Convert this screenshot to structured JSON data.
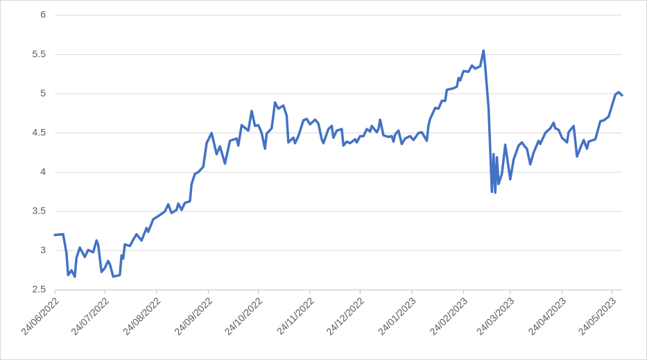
{
  "chart_data": {
    "type": "line",
    "x": [
      "24/06/2022",
      "29/06/2022",
      "01/07/2022",
      "02/07/2022",
      "04/07/2022",
      "06/07/2022",
      "07/07/2022",
      "09/07/2022",
      "12/07/2022",
      "14/07/2022",
      "17/07/2022",
      "19/07/2022",
      "20/07/2022",
      "22/07/2022",
      "24/07/2022",
      "26/07/2022",
      "27/07/2022",
      "29/07/2022",
      "02/08/2022",
      "03/08/2022",
      "04/08/2022",
      "05/08/2022",
      "08/08/2022",
      "10/08/2022",
      "12/08/2022",
      "15/08/2022",
      "18/08/2022",
      "19/08/2022",
      "22/08/2022",
      "25/08/2022",
      "29/08/2022",
      "31/08/2022",
      "02/09/2022",
      "05/09/2022",
      "06/09/2022",
      "08/09/2022",
      "10/09/2022",
      "13/09/2022",
      "14/09/2022",
      "16/09/2022",
      "18/09/2022",
      "21/09/2022",
      "23/09/2022",
      "26/09/2022",
      "29/09/2022",
      "01/10/2022",
      "04/10/2022",
      "07/10/2022",
      "11/10/2022",
      "12/10/2022",
      "14/10/2022",
      "18/10/2022",
      "20/10/2022",
      "22/10/2022",
      "24/10/2022",
      "26/10/2022",
      "28/10/2022",
      "29/10/2022",
      "01/11/2022",
      "03/11/2022",
      "05/11/2022",
      "08/11/2022",
      "10/11/2022",
      "11/11/2022",
      "14/11/2022",
      "15/11/2022",
      "17/11/2022",
      "20/11/2022",
      "22/11/2022",
      "24/11/2022",
      "27/11/2022",
      "29/11/2022",
      "01/12/2022",
      "02/12/2022",
      "05/12/2022",
      "07/12/2022",
      "08/12/2022",
      "10/12/2022",
      "13/12/2022",
      "14/12/2022",
      "16/12/2022",
      "18/12/2022",
      "21/12/2022",
      "22/12/2022",
      "24/12/2022",
      "26/12/2022",
      "28/12/2022",
      "30/12/2022",
      "31/12/2022",
      "03/01/2023",
      "04/01/2023",
      "05/01/2023",
      "07/01/2023",
      "10/01/2023",
      "12/01/2023",
      "13/01/2023",
      "14/01/2023",
      "16/01/2023",
      "18/01/2023",
      "20/01/2023",
      "23/01/2023",
      "25/01/2023",
      "28/01/2023",
      "30/01/2023",
      "02/02/2023",
      "03/02/2023",
      "04/02/2023",
      "07/02/2023",
      "09/02/2023",
      "11/02/2023",
      "13/02/2023",
      "14/02/2023",
      "18/02/2023",
      "20/02/2023",
      "21/02/2023",
      "22/02/2023",
      "24/02/2023",
      "27/02/2023",
      "01/03/2023",
      "03/03/2023",
      "06/03/2023",
      "08/03/2023",
      "09/03/2023",
      "11/03/2023",
      "13/03/2023",
      "14/03/2023",
      "15/03/2023",
      "16/03/2023",
      "17/03/2023",
      "19/03/2023",
      "21/03/2023",
      "24/03/2023",
      "26/03/2023",
      "29/03/2023",
      "31/03/2023",
      "02/04/2023",
      "03/04/2023",
      "05/04/2023",
      "07/04/2023",
      "10/04/2023",
      "11/04/2023",
      "14/04/2023",
      "17/04/2023",
      "19/04/2023",
      "20/04/2023",
      "22/04/2023",
      "24/04/2023",
      "27/04/2023",
      "28/04/2023",
      "01/05/2023",
      "03/05/2023",
      "05/05/2023",
      "07/05/2023",
      "09/05/2023",
      "10/05/2023",
      "14/05/2023",
      "17/05/2023",
      "19/05/2023",
      "22/05/2023",
      "26/05/2023",
      "28/05/2023",
      "30/05/2023"
    ],
    "series": [
      {
        "color": "#4472c4",
        "values": [
          3.2,
          3.21,
          2.97,
          2.69,
          2.75,
          2.67,
          2.91,
          3.04,
          2.92,
          3.01,
          2.98,
          3.13,
          3.08,
          2.73,
          2.78,
          2.87,
          2.83,
          2.67,
          2.69,
          2.94,
          2.9,
          3.08,
          3.06,
          3.14,
          3.21,
          3.13,
          3.29,
          3.24,
          3.4,
          3.44,
          3.5,
          3.59,
          3.48,
          3.52,
          3.6,
          3.52,
          3.61,
          3.63,
          3.85,
          3.98,
          4.0,
          4.07,
          4.37,
          4.5,
          4.23,
          4.33,
          4.11,
          4.4,
          4.43,
          4.34,
          4.6,
          4.53,
          4.78,
          4.59,
          4.6,
          4.5,
          4.3,
          4.49,
          4.56,
          4.89,
          4.81,
          4.85,
          4.72,
          4.38,
          4.44,
          4.37,
          4.46,
          4.66,
          4.68,
          4.61,
          4.67,
          4.62,
          4.42,
          4.37,
          4.55,
          4.59,
          4.44,
          4.53,
          4.55,
          4.34,
          4.39,
          4.37,
          4.42,
          4.38,
          4.46,
          4.46,
          4.55,
          4.52,
          4.59,
          4.51,
          4.55,
          4.67,
          4.47,
          4.45,
          4.46,
          4.39,
          4.48,
          4.53,
          4.36,
          4.43,
          4.46,
          4.41,
          4.5,
          4.51,
          4.4,
          4.6,
          4.68,
          4.82,
          4.81,
          4.91,
          4.91,
          5.05,
          5.07,
          5.09,
          5.2,
          5.17,
          5.29,
          5.28,
          5.36,
          5.32,
          5.35,
          5.55,
          5.35,
          4.82,
          3.75,
          4.23,
          3.74,
          4.19,
          3.85,
          3.98,
          4.35,
          3.91,
          4.16,
          4.34,
          4.38,
          4.32,
          4.3,
          4.1,
          4.25,
          4.4,
          4.36,
          4.5,
          4.56,
          4.63,
          4.56,
          4.54,
          4.44,
          4.38,
          4.51,
          4.59,
          4.2,
          4.31,
          4.41,
          4.3,
          4.39,
          4.42,
          4.65,
          4.66,
          4.71,
          4.99,
          5.02,
          4.98
        ]
      }
    ],
    "xlim": [
      "24/06/2022",
      "30/05/2023"
    ],
    "xticks": [
      "24/06/2022",
      "24/07/2022",
      "24/08/2022",
      "24/09/2022",
      "24/10/2022",
      "24/11/2022",
      "24/12/2022",
      "24/01/2023",
      "24/02/2023",
      "24/03/2023",
      "24/04/2023",
      "24/05/2023"
    ],
    "ylim": [
      2.5,
      6
    ],
    "yticks": [
      2.5,
      3,
      3.5,
      4,
      4.5,
      5,
      5.5,
      6
    ],
    "grid": true
  }
}
